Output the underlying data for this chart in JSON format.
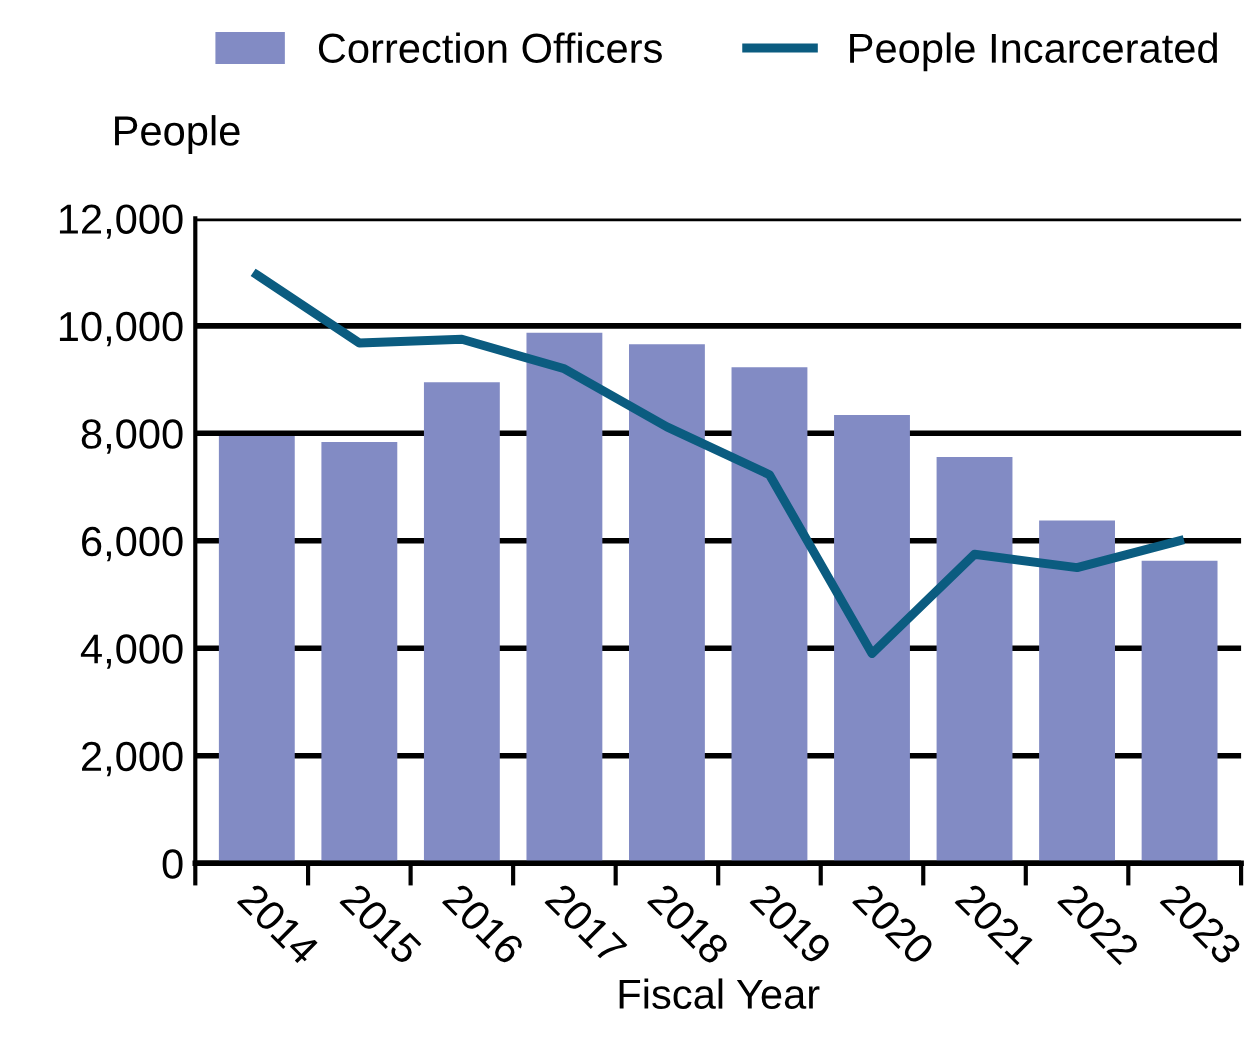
{
  "chart_data": {
    "type": "bar",
    "ylabel": "People",
    "xlabel": "Fiscal Year",
    "categories": [
      "2014",
      "2015",
      "2016",
      "2017",
      "2018",
      "2019",
      "2020",
      "2021",
      "2022",
      "2023"
    ],
    "series": [
      {
        "name": "Correction Officers",
        "color": "#828bc4",
        "values": [
          7950,
          7840,
          8950,
          9870,
          9660,
          9230,
          8340,
          7560,
          6380,
          5630
        ]
      },
      {
        "name": "People Incarcerated",
        "type": "line",
        "color": "#0b5c80",
        "values": [
          10950,
          9680,
          9750,
          9200,
          8120,
          7230,
          3900,
          5750,
          5500,
          6000
        ]
      }
    ],
    "ylim": [
      0,
      12000
    ],
    "yticks": [
      {
        "value": 0,
        "label": "0"
      },
      {
        "value": 2000,
        "label": "2,000"
      },
      {
        "value": 4000,
        "label": "4,000"
      },
      {
        "value": 6000,
        "label": "6,000"
      },
      {
        "value": 8000,
        "label": "8,000"
      },
      {
        "value": 10000,
        "label": "10,000"
      },
      {
        "value": 12000,
        "label": "12,000"
      }
    ],
    "grid": "y",
    "legend": "top",
    "marker": "none",
    "line_style": "solid"
  }
}
